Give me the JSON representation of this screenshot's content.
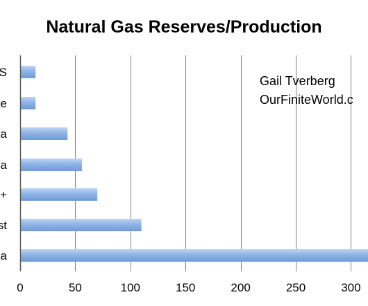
{
  "chart_data": {
    "type": "bar",
    "orientation": "horizontal",
    "title": "Natural Gas Reserves/Production",
    "category_labels_visible": [
      "S",
      "e",
      "a",
      "a",
      "+",
      "st",
      "a"
    ],
    "values": [
      14,
      14,
      43,
      56,
      70,
      110,
      320
    ],
    "x_ticks": [
      0,
      50,
      100,
      150,
      200,
      250,
      300
    ],
    "xlim": [
      0,
      315
    ],
    "grid": "vertical",
    "legend": "none",
    "annotation": [
      "Gail Tverberg",
      "OurFiniteWorld.c"
    ],
    "colors": {
      "bar_top": "#bdd3f2",
      "bar_mid": "#8fb4e6",
      "bar_bottom": "#6e9ad6",
      "grid": "#7f7f7f",
      "axis": "#595959"
    }
  }
}
